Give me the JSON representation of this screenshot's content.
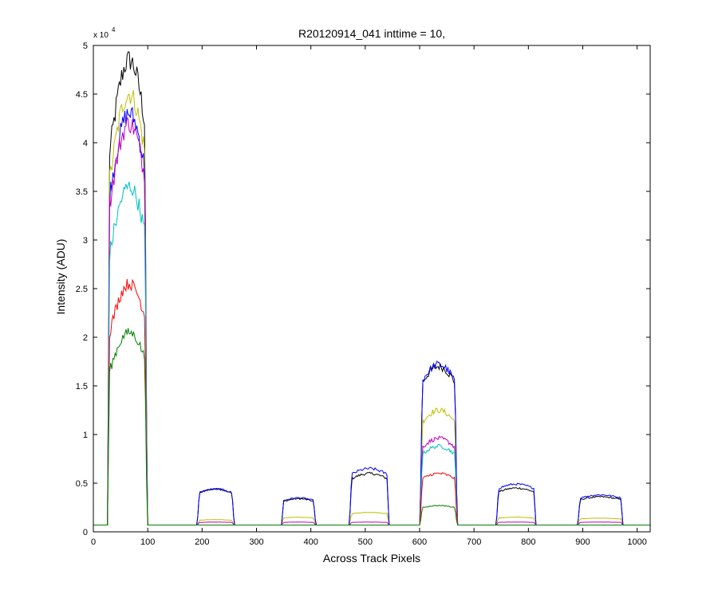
{
  "chart_data": {
    "type": "line",
    "title": "R20120914_041 inttime = 10,",
    "xlabel": "Across Track Pixels",
    "ylabel": "Intensity (ADU)",
    "y_exponent_base": "x 10",
    "y_exponent_power": "4",
    "xlim": [
      0,
      1024
    ],
    "ylim": [
      0,
      50000
    ],
    "xticks": [
      0,
      100,
      200,
      300,
      400,
      500,
      600,
      700,
      800,
      900,
      1000
    ],
    "yticks": [
      0,
      5000,
      10000,
      15000,
      20000,
      25000,
      30000,
      35000,
      40000,
      45000,
      50000
    ],
    "ytick_labels": [
      "0",
      "0.5",
      "1",
      "1.5",
      "2",
      "2.5",
      "3",
      "3.5",
      "4",
      "4.5",
      "5"
    ],
    "grid": false,
    "baseline": 700,
    "segments": [
      {
        "start": 30,
        "end": 95
      },
      {
        "start": 195,
        "end": 255
      },
      {
        "start": 350,
        "end": 405
      },
      {
        "start": 475,
        "end": 540
      },
      {
        "start": 605,
        "end": 665
      },
      {
        "start": 745,
        "end": 810
      },
      {
        "start": 895,
        "end": 970
      }
    ],
    "series": [
      {
        "color": "#000000",
        "values": [
          48500,
          4400,
          3400,
          6000,
          17000,
          4500,
          3600
        ]
      },
      {
        "color": "#bfbf00",
        "values": [
          45000,
          1250,
          1500,
          2000,
          12500,
          1500,
          1400
        ]
      },
      {
        "color": "#0000ff",
        "values": [
          43000,
          4400,
          3500,
          6500,
          17200,
          4900,
          3800
        ]
      },
      {
        "color": "#bf00bf",
        "values": [
          42000,
          1000,
          1000,
          1000,
          9600,
          1000,
          1000
        ]
      },
      {
        "color": "#00bfbf",
        "values": [
          35500,
          700,
          700,
          700,
          8800,
          700,
          700
        ]
      },
      {
        "color": "#ff0000",
        "values": [
          25500,
          700,
          700,
          700,
          6000,
          700,
          700
        ]
      },
      {
        "color": "#008000",
        "values": [
          20500,
          700,
          700,
          700,
          2700,
          700,
          700
        ]
      }
    ]
  }
}
